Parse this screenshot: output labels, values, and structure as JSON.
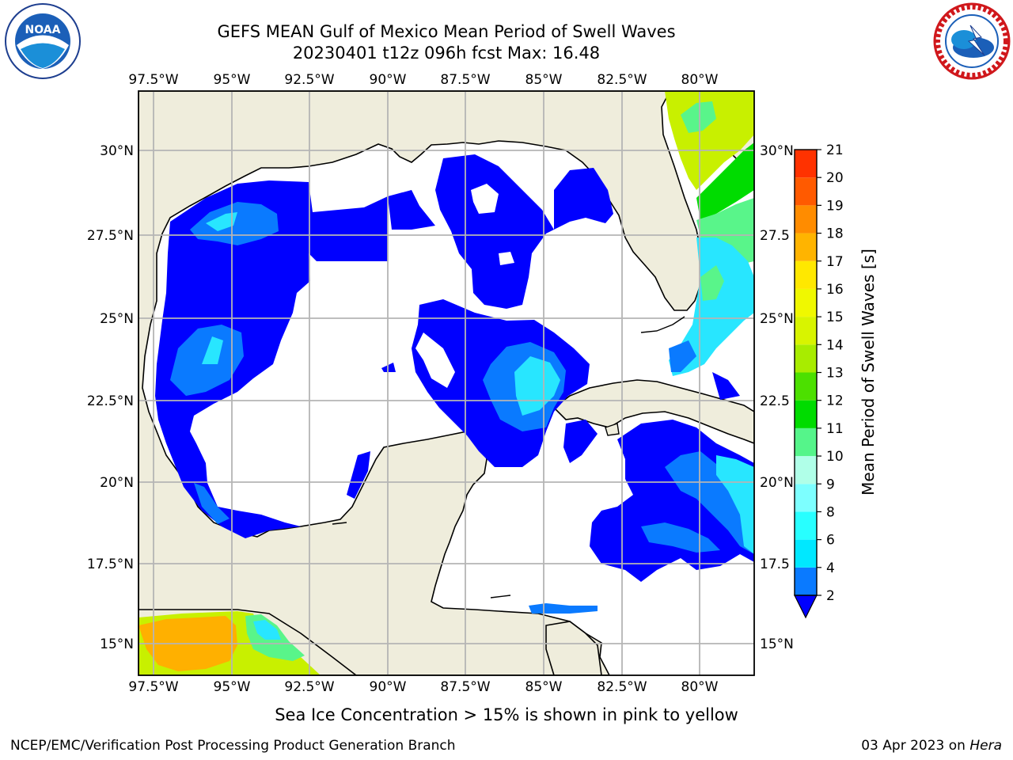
{
  "header": {
    "title_line1": "GEFS MEAN Gulf of Mexico Mean Period of Swell Waves",
    "title_line2": "20230401 t12z 096h fcst   Max: 16.48"
  },
  "map": {
    "lon_labels": [
      "97.5°W",
      "95°W",
      "92.5°W",
      "90°W",
      "87.5°W",
      "85°W",
      "82.5°W",
      "80°W"
    ],
    "lat_labels_left": [
      "30°N",
      "27.5°N",
      "25°N",
      "22.5°N",
      "20°N",
      "17.5°N",
      "15°N"
    ],
    "lat_labels_right": [
      "30°N",
      "27.5",
      "25°N",
      "22.5",
      "20°N",
      "17.5",
      "15°N"
    ],
    "colors": {
      "land": "#efeddc",
      "deep_blue": "#0000ff",
      "mid_blue": "#0a7aff",
      "cyan": "#28e6ff",
      "light_green": "#59f58a",
      "green": "#00dc00",
      "yellow_green": "#c8f000",
      "orange": "#ffb000"
    }
  },
  "colorbar": {
    "label": "Mean Period of Swell Waves [s]",
    "ticks": [
      "2",
      "4",
      "6",
      "8",
      "9",
      "10",
      "11",
      "12",
      "13",
      "14",
      "15",
      "16",
      "17",
      "18",
      "19",
      "20",
      "21"
    ],
    "colors": [
      "#0a7aff",
      "#00e8ff",
      "#28ffff",
      "#7dffff",
      "#b0ffe8",
      "#55f58a",
      "#00dc00",
      "#4ce000",
      "#a8ec00",
      "#d8f400",
      "#f0f800",
      "#ffe800",
      "#ffb400",
      "#ff8c00",
      "#ff5a00",
      "#ff3200",
      "#ff0000"
    ],
    "under_color": "#0000ff"
  },
  "notes": {
    "ice": "Sea Ice Concentration > 15% is shown in pink to yellow"
  },
  "footer": {
    "left": "NCEP/EMC/Verification Post Processing Product Generation Branch",
    "right_date": "03 Apr 2023 on ",
    "right_host": "Hera"
  },
  "logos": {
    "left": "noaa-logo",
    "right": "nws-logo"
  }
}
